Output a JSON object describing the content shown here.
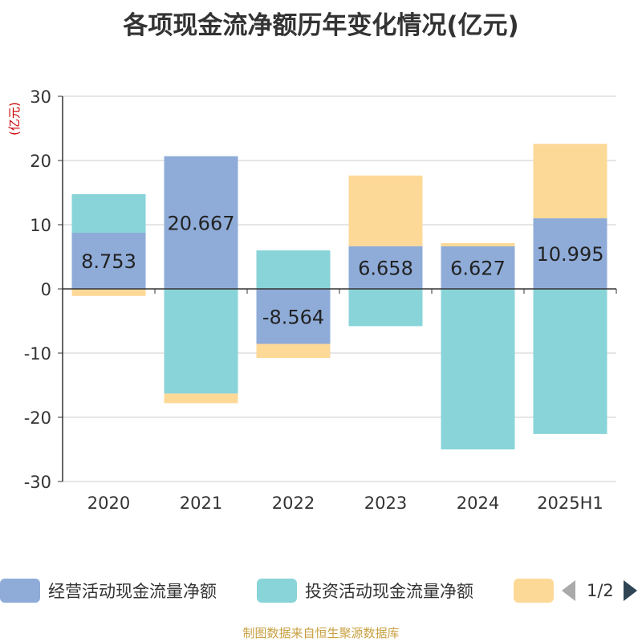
{
  "title": "各项现金流净额历年变化情况(亿元)",
  "source": "制图数据来自恒生聚源数据库",
  "legend": {
    "pager": "1/2"
  },
  "chart_data": {
    "type": "bar",
    "stacked": true,
    "title": "各项现金流净额历年变化情况(亿元)",
    "ylabel": "(亿元)",
    "xlabel": "",
    "ylim": [
      -30,
      30
    ],
    "yticks": [
      30,
      20,
      10,
      0,
      -10,
      -20,
      -30
    ],
    "grid": true,
    "legend_position": "bottom",
    "categories": [
      "2020",
      "2021",
      "2022",
      "2023",
      "2024",
      "2025H1"
    ],
    "series": [
      {
        "name": "经营活动现金流量净额",
        "color": "#8facd9",
        "labeled": true,
        "values": [
          8.753,
          20.667,
          -8.564,
          6.658,
          6.627,
          10.995
        ]
      },
      {
        "name": "投资活动现金流量净额",
        "color": "#88d4d8",
        "labeled": false,
        "values": [
          6.0,
          -16.3,
          6.0,
          -5.8,
          -25.0,
          -22.6
        ]
      },
      {
        "name": "",
        "color": "#fdd998",
        "labeled": false,
        "values": [
          -1.1,
          -1.5,
          -2.2,
          11.0,
          0.5,
          11.6
        ]
      }
    ]
  }
}
